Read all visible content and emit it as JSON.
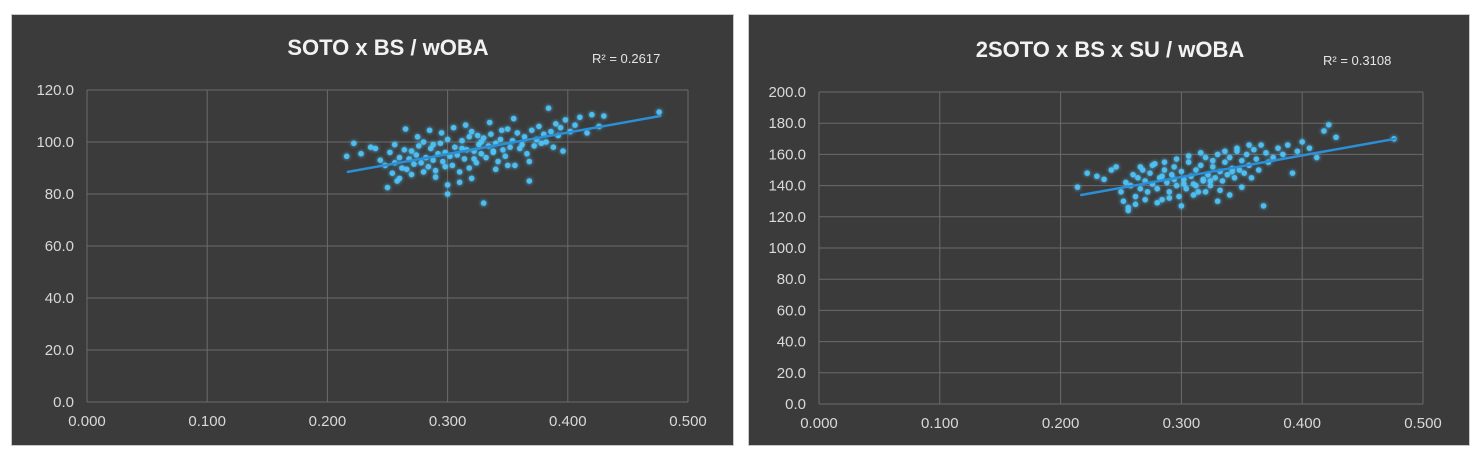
{
  "chart_data": [
    {
      "type": "scatter",
      "title": "SOTO x BS / wOBA",
      "trendline_label": "R² = 0.2617",
      "xlim": [
        0,
        0.5
      ],
      "ylim": [
        0,
        120
      ],
      "x_ticks": [
        "0.000",
        "0.100",
        "0.200",
        "0.300",
        "0.400",
        "0.500"
      ],
      "y_ticks": [
        "0.0",
        "20.0",
        "40.0",
        "60.0",
        "80.0",
        "100.0",
        "120.0"
      ],
      "trendline": {
        "x": [
          0.217,
          0.477
        ],
        "y": [
          88.5,
          110.0
        ]
      },
      "point_color": "#4fc3f7",
      "line_color": "#2b8fd6",
      "grid": true,
      "series": [
        {
          "x": [
            0.216,
            0.222,
            0.228,
            0.236,
            0.24,
            0.244,
            0.248,
            0.25,
            0.252,
            0.254,
            0.256,
            0.258,
            0.26,
            0.262,
            0.264,
            0.266,
            0.268,
            0.27,
            0.272,
            0.274,
            0.276,
            0.278,
            0.28,
            0.282,
            0.284,
            0.286,
            0.288,
            0.29,
            0.292,
            0.294,
            0.296,
            0.298,
            0.3,
            0.302,
            0.304,
            0.306,
            0.308,
            0.31,
            0.312,
            0.314,
            0.316,
            0.318,
            0.32,
            0.322,
            0.324,
            0.326,
            0.328,
            0.33,
            0.332,
            0.334,
            0.336,
            0.338,
            0.34,
            0.342,
            0.344,
            0.346,
            0.348,
            0.35,
            0.352,
            0.354,
            0.356,
            0.358,
            0.36,
            0.362,
            0.364,
            0.366,
            0.368,
            0.37,
            0.372,
            0.374,
            0.376,
            0.378,
            0.38,
            0.382,
            0.384,
            0.386,
            0.388,
            0.39,
            0.392,
            0.394,
            0.396,
            0.398,
            0.402,
            0.406,
            0.41,
            0.416,
            0.42,
            0.426,
            0.43,
            0.476,
            0.26,
            0.27,
            0.28,
            0.29,
            0.3,
            0.31,
            0.32,
            0.33,
            0.34,
            0.35,
            0.295,
            0.305,
            0.315,
            0.325,
            0.335,
            0.285,
            0.275,
            0.265,
            0.345,
            0.355,
            0.3,
            0.322,
            0.368,
            0.256,
            0.312,
            0.328,
            0.298,
            0.288,
            0.318,
            0.338
          ],
          "y": [
            94.5,
            99.5,
            95.5,
            98.0,
            97.5,
            93.0,
            91.0,
            82.5,
            96.0,
            88.0,
            99.0,
            85.0,
            94.0,
            90.0,
            97.0,
            89.5,
            93.5,
            96.5,
            91.5,
            95.0,
            98.5,
            92.0,
            100.0,
            94.0,
            90.5,
            97.5,
            93.0,
            89.0,
            95.5,
            99.5,
            92.5,
            96.0,
            101.0,
            94.5,
            91.0,
            98.0,
            95.0,
            88.5,
            100.5,
            93.5,
            97.0,
            90.0,
            104.0,
            96.5,
            92.0,
            99.0,
            95.5,
            101.5,
            94.0,
            98.5,
            103.0,
            96.0,
            99.5,
            92.5,
            101.0,
            97.0,
            94.5,
            105.0,
            98.0,
            100.5,
            91.0,
            103.5,
            97.5,
            99.0,
            102.0,
            95.5,
            85.0,
            104.5,
            98.5,
            101.0,
            106.0,
            99.5,
            103.0,
            100.0,
            113.0,
            104.0,
            98.0,
            107.0,
            102.5,
            105.5,
            96.5,
            108.5,
            104.0,
            106.5,
            109.5,
            103.5,
            110.5,
            106.0,
            110.0,
            111.5,
            86.0,
            87.5,
            88.5,
            86.5,
            80.0,
            84.5,
            86.0,
            76.5,
            89.5,
            91.0,
            103.5,
            105.5,
            106.5,
            102.5,
            107.5,
            104.5,
            102.0,
            105.0,
            104.5,
            109.0,
            83.5,
            93.5,
            92.5,
            92.0,
            97.5,
            100.0,
            90.5,
            99.0,
            102.0,
            96.5
          ]
        }
      ]
    },
    {
      "type": "scatter",
      "title": "2SOTO x BS x SU / wOBA",
      "trendline_label": "R² = 0.3108",
      "xlim": [
        0,
        0.5
      ],
      "ylim": [
        0,
        200
      ],
      "x_ticks": [
        "0.000",
        "0.100",
        "0.200",
        "0.300",
        "0.400",
        "0.500"
      ],
      "y_ticks": [
        "0.0",
        "20.0",
        "40.0",
        "60.0",
        "80.0",
        "100.0",
        "120.0",
        "140.0",
        "160.0",
        "180.0",
        "200.0"
      ],
      "trendline": {
        "x": [
          0.217,
          0.477
        ],
        "y": [
          134.0,
          170.0
        ]
      },
      "point_color": "#4fc3f7",
      "line_color": "#2b8fd6",
      "grid": true,
      "series": [
        {
          "x": [
            0.214,
            0.222,
            0.23,
            0.236,
            0.242,
            0.246,
            0.25,
            0.252,
            0.254,
            0.256,
            0.258,
            0.26,
            0.262,
            0.264,
            0.266,
            0.268,
            0.27,
            0.272,
            0.274,
            0.276,
            0.278,
            0.28,
            0.282,
            0.284,
            0.286,
            0.288,
            0.29,
            0.292,
            0.294,
            0.296,
            0.298,
            0.3,
            0.302,
            0.304,
            0.306,
            0.308,
            0.31,
            0.312,
            0.314,
            0.316,
            0.318,
            0.32,
            0.322,
            0.324,
            0.326,
            0.328,
            0.33,
            0.332,
            0.334,
            0.336,
            0.338,
            0.34,
            0.342,
            0.344,
            0.346,
            0.348,
            0.35,
            0.352,
            0.354,
            0.356,
            0.358,
            0.36,
            0.362,
            0.364,
            0.366,
            0.368,
            0.37,
            0.372,
            0.376,
            0.38,
            0.384,
            0.388,
            0.392,
            0.396,
            0.4,
            0.406,
            0.412,
            0.418,
            0.422,
            0.428,
            0.476,
            0.256,
            0.262,
            0.27,
            0.28,
            0.29,
            0.3,
            0.31,
            0.32,
            0.33,
            0.34,
            0.35,
            0.296,
            0.306,
            0.316,
            0.326,
            0.336,
            0.286,
            0.276,
            0.266,
            0.346,
            0.356,
            0.302,
            0.318,
            0.332,
            0.284,
            0.294,
            0.312,
            0.324,
            0.342
          ],
          "y": [
            139.0,
            148.0,
            146.0,
            144.0,
            150.0,
            152.0,
            136.0,
            130.0,
            142.0,
            126.0,
            140.0,
            147.0,
            133.0,
            145.0,
            138.0,
            150.0,
            143.0,
            136.0,
            148.0,
            141.0,
            154.0,
            138.0,
            145.0,
            131.0,
            150.0,
            142.0,
            136.0,
            147.0,
            152.0,
            140.0,
            133.0,
            149.0,
            144.0,
            138.0,
            155.0,
            146.0,
            141.0,
            150.0,
            136.0,
            153.0,
            144.0,
            158.0,
            147.0,
            140.0,
            152.0,
            145.0,
            160.0,
            149.0,
            143.0,
            155.0,
            147.0,
            158.0,
            151.0,
            145.0,
            162.0,
            150.0,
            156.0,
            148.0,
            160.0,
            153.0,
            145.0,
            163.0,
            157.0,
            150.0,
            166.0,
            127.0,
            161.0,
            155.0,
            158.0,
            164.0,
            160.0,
            166.0,
            148.0,
            162.0,
            168.0,
            164.0,
            158.0,
            175.0,
            179.0,
            171.0,
            170.0,
            124.0,
            128.0,
            131.0,
            129.0,
            132.0,
            127.0,
            134.0,
            136.0,
            130.0,
            134.0,
            139.0,
            157.0,
            159.0,
            161.0,
            156.0,
            162.0,
            155.0,
            153.0,
            152.0,
            164.0,
            166.0,
            141.0,
            143.0,
            137.0,
            146.0,
            144.0,
            140.0,
            143.0,
            149.0
          ]
        }
      ]
    }
  ]
}
